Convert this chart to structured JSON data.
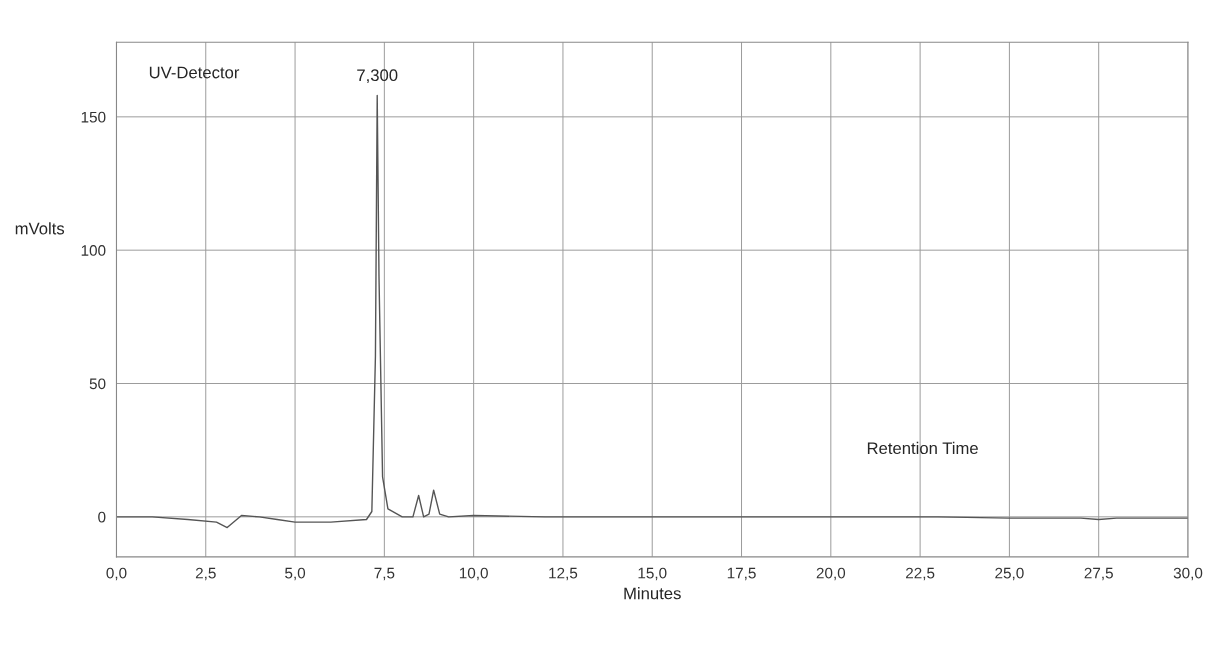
{
  "chart_data": {
    "type": "line",
    "xlabel": "Minutes",
    "ylabel": "mVolts",
    "annotations": [
      "UV-Detector",
      {
        "text": "7,300",
        "x": 7.3,
        "y": 158
      },
      "Retention Time"
    ],
    "series": [
      {
        "color": "#555555",
        "x": [
          0,
          1,
          2,
          2.8,
          3.1,
          3.5,
          4,
          4.5,
          5,
          6,
          7,
          7.15,
          7.25,
          7.3,
          7.35,
          7.45,
          7.6,
          8,
          8.3,
          8.46,
          8.6,
          8.75,
          8.88,
          9.05,
          9.3,
          10,
          12,
          15,
          20,
          23,
          25,
          27,
          27.5,
          28,
          30
        ],
        "values": [
          0,
          0,
          -1,
          -2,
          -4,
          0.5,
          0,
          -1,
          -2,
          -2,
          -1,
          2,
          60,
          158,
          90,
          15,
          3,
          0,
          0,
          8,
          0,
          1,
          10,
          1,
          0,
          0.5,
          0,
          0,
          0,
          0,
          -0.5,
          -0.5,
          -1,
          -0.5,
          -0.5
        ]
      }
    ],
    "xlim": [
      0,
      30
    ],
    "ylim": [
      -15,
      178
    ],
    "xticks": [
      {
        "value": 0,
        "label": "0,0"
      },
      {
        "value": 2.5,
        "label": "2,5"
      },
      {
        "value": 5,
        "label": "5,0"
      },
      {
        "value": 7.5,
        "label": "7,5"
      },
      {
        "value": 10,
        "label": "10,0"
      },
      {
        "value": 12.5,
        "label": "12,5"
      },
      {
        "value": 15,
        "label": "15,0"
      },
      {
        "value": 17.5,
        "label": "17,5"
      },
      {
        "value": 20,
        "label": "20,0"
      },
      {
        "value": 22.5,
        "label": "22,5"
      },
      {
        "value": 25,
        "label": "25,0"
      },
      {
        "value": 27.5,
        "label": "27,5"
      },
      {
        "value": 30,
        "label": "30,0"
      }
    ],
    "yticks": [
      0,
      50,
      100,
      150
    ],
    "grid": true,
    "legend": false,
    "marker": "none",
    "line_style": "solid"
  }
}
